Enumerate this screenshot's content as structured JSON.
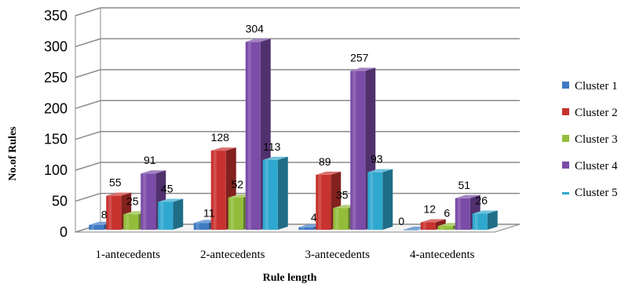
{
  "chart_data": {
    "type": "bar",
    "title": "",
    "xlabel": "Rule length",
    "ylabel": "No.of Rules",
    "ylim": [
      0,
      350
    ],
    "yticks": [
      "0",
      "50",
      "100",
      "150",
      "200",
      "250",
      "300",
      "350"
    ],
    "grid": true,
    "legend_position": "right",
    "categories": [
      "1-antecedents",
      "2-antecedents",
      "3-antecedents",
      "4-antecedents"
    ],
    "series": [
      {
        "name": "Cluster 1",
        "color": "#3F7BC4",
        "values": [
          8,
          11,
          4,
          0
        ],
        "labels": [
          "8",
          "11",
          "4",
          "0"
        ]
      },
      {
        "name": "Cluster 2",
        "color": "#C8322E",
        "values": [
          55,
          128,
          89,
          12
        ],
        "labels": [
          "55",
          "128",
          "89",
          "12"
        ]
      },
      {
        "name": "Cluster 3",
        "color": "#92BD3A",
        "values": [
          25,
          52,
          35,
          6
        ],
        "labels": [
          "25",
          "52",
          "35",
          "6"
        ]
      },
      {
        "name": "Cluster 4",
        "color": "#7B4CA8",
        "values": [
          91,
          304,
          257,
          51
        ],
        "labels": [
          "91",
          "304",
          "257",
          "51"
        ]
      },
      {
        "name": "Cluster 5",
        "color": "#2FA8CF",
        "values": [
          45,
          113,
          93,
          26
        ],
        "labels": [
          "45",
          "113",
          "93",
          "26"
        ]
      }
    ]
  }
}
